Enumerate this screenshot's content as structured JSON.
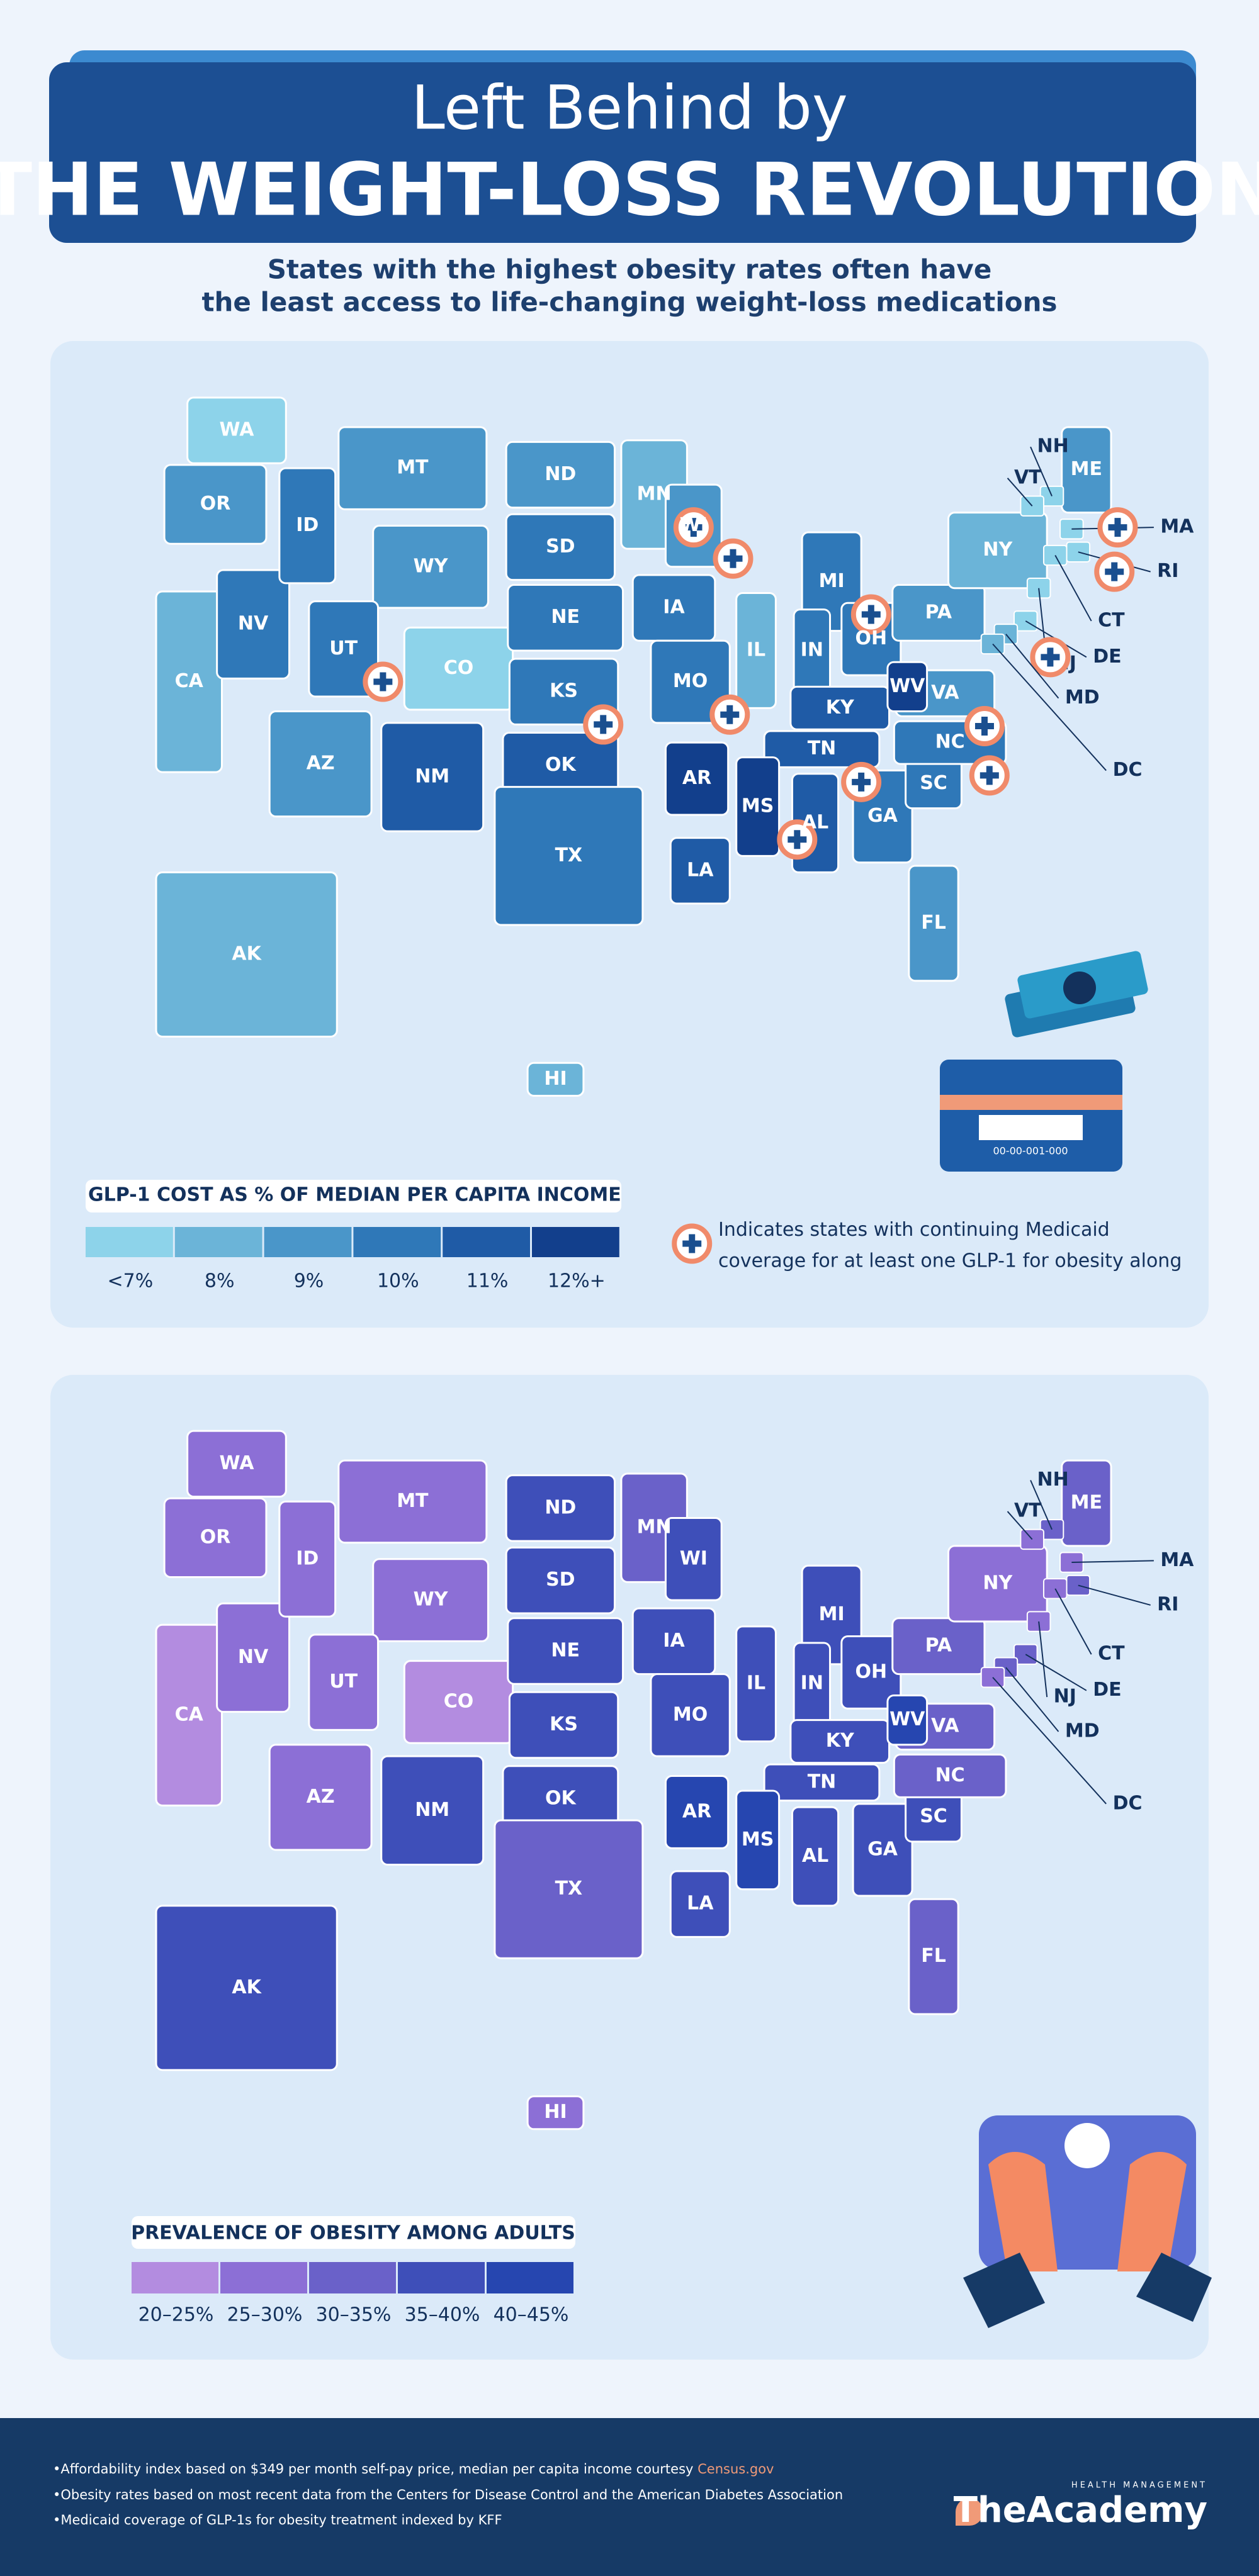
{
  "header": {
    "title_line1": "Left Behind by",
    "title_line2": "THE WEIGHT-LOSS REVOLUTION",
    "subtitle_line1": "States with the highest obesity rates often have",
    "subtitle_line2": "the least access to life-changing weight-loss medications"
  },
  "maps": [
    {
      "legend_title": "GLP-1 COST AS % OF MEDIAN PER CAPITA INCOME",
      "legend_labels": [
        "<7%",
        "8%",
        "9%",
        "10%",
        "11%",
        "12%+"
      ],
      "colors": [
        "#8dd3ea",
        "#6bb4d8",
        "#4a96c9",
        "#2f78b8",
        "#1f5ba6",
        "#123f8c"
      ],
      "note_line1": "Indicates states with continuing Medicaid",
      "note_line2": "coverage for at least one GLP-1 for obesity along",
      "states": [
        {
          "label": "WA",
          "bin": 0
        },
        {
          "label": "OR",
          "bin": 2
        },
        {
          "label": "CA",
          "bin": 1
        },
        {
          "label": "NV",
          "bin": 3
        },
        {
          "label": "ID",
          "bin": 3
        },
        {
          "label": "MT",
          "bin": 2
        },
        {
          "label": "WY",
          "bin": 2
        },
        {
          "label": "UT",
          "bin": 3,
          "medicaid": true
        },
        {
          "label": "CO",
          "bin": 0
        },
        {
          "label": "AZ",
          "bin": 2
        },
        {
          "label": "NM",
          "bin": 4
        },
        {
          "label": "ND",
          "bin": 2
        },
        {
          "label": "SD",
          "bin": 3
        },
        {
          "label": "NE",
          "bin": 3
        },
        {
          "label": "KS",
          "bin": 3,
          "medicaid": true
        },
        {
          "label": "OK",
          "bin": 4
        },
        {
          "label": "TX",
          "bin": 3
        },
        {
          "label": "MN",
          "bin": 1,
          "medicaid": true
        },
        {
          "label": "IA",
          "bin": 3
        },
        {
          "label": "MO",
          "bin": 3,
          "medicaid": true
        },
        {
          "label": "AR",
          "bin": 5
        },
        {
          "label": "LA",
          "bin": 4
        },
        {
          "label": "WI",
          "bin": 2,
          "medicaid": true
        },
        {
          "label": "IL",
          "bin": 1
        },
        {
          "label": "MI",
          "bin": 3,
          "medicaid": true
        },
        {
          "label": "IN",
          "bin": 3
        },
        {
          "label": "OH",
          "bin": 3
        },
        {
          "label": "KY",
          "bin": 4
        },
        {
          "label": "TN",
          "bin": 4,
          "medicaid": true
        },
        {
          "label": "MS",
          "bin": 5,
          "medicaid": true
        },
        {
          "label": "AL",
          "bin": 4
        },
        {
          "label": "GA",
          "bin": 3
        },
        {
          "label": "FL",
          "bin": 2
        },
        {
          "label": "SC",
          "bin": 3
        },
        {
          "label": "NC",
          "bin": 3,
          "medicaid": true
        },
        {
          "label": "VA",
          "bin": 2,
          "medicaid": true
        },
        {
          "label": "WV",
          "bin": 5
        },
        {
          "label": "PA",
          "bin": 2
        },
        {
          "label": "NY",
          "bin": 1
        },
        {
          "label": "ME",
          "bin": 2
        },
        {
          "label": "AK",
          "bin": 1
        },
        {
          "label": "HI",
          "bin": 1
        },
        {
          "label": "NH",
          "bin": 0
        },
        {
          "label": "VT",
          "bin": 0
        },
        {
          "label": "MA",
          "bin": 0,
          "medicaid": true
        },
        {
          "label": "RI",
          "bin": 0,
          "medicaid": true
        },
        {
          "label": "CT",
          "bin": 0
        },
        {
          "label": "NJ",
          "bin": 0
        },
        {
          "label": "DE",
          "bin": 0,
          "medicaid": true
        },
        {
          "label": "MD",
          "bin": 1
        },
        {
          "label": "DC",
          "bin": 1
        }
      ]
    },
    {
      "legend_title": "PREVALENCE OF OBESITY AMONG ADULTS",
      "legend_labels": [
        "20–25%",
        "25–30%",
        "30–35%",
        "35–40%",
        "40–45%"
      ],
      "colors": [
        "#b38ce0",
        "#8c6fd6",
        "#6a61c9",
        "#3e4fb9",
        "#2646b0"
      ],
      "states": [
        {
          "label": "WA",
          "bin": 1
        },
        {
          "label": "OR",
          "bin": 1
        },
        {
          "label": "CA",
          "bin": 0
        },
        {
          "label": "NV",
          "bin": 1
        },
        {
          "label": "ID",
          "bin": 1
        },
        {
          "label": "MT",
          "bin": 1
        },
        {
          "label": "WY",
          "bin": 1
        },
        {
          "label": "UT",
          "bin": 1
        },
        {
          "label": "CO",
          "bin": 0
        },
        {
          "label": "AZ",
          "bin": 1
        },
        {
          "label": "NM",
          "bin": 3
        },
        {
          "label": "ND",
          "bin": 3
        },
        {
          "label": "SD",
          "bin": 3
        },
        {
          "label": "NE",
          "bin": 3
        },
        {
          "label": "KS",
          "bin": 3
        },
        {
          "label": "OK",
          "bin": 3
        },
        {
          "label": "TX",
          "bin": 2
        },
        {
          "label": "MN",
          "bin": 2
        },
        {
          "label": "IA",
          "bin": 3
        },
        {
          "label": "MO",
          "bin": 3
        },
        {
          "label": "AR",
          "bin": 4
        },
        {
          "label": "LA",
          "bin": 3
        },
        {
          "label": "WI",
          "bin": 3
        },
        {
          "label": "IL",
          "bin": 3
        },
        {
          "label": "MI",
          "bin": 3
        },
        {
          "label": "IN",
          "bin": 3
        },
        {
          "label": "OH",
          "bin": 3
        },
        {
          "label": "KY",
          "bin": 3
        },
        {
          "label": "TN",
          "bin": 3
        },
        {
          "label": "MS",
          "bin": 4
        },
        {
          "label": "AL",
          "bin": 3
        },
        {
          "label": "GA",
          "bin": 3
        },
        {
          "label": "FL",
          "bin": 2
        },
        {
          "label": "SC",
          "bin": 3
        },
        {
          "label": "NC",
          "bin": 2
        },
        {
          "label": "VA",
          "bin": 2
        },
        {
          "label": "WV",
          "bin": 4
        },
        {
          "label": "PA",
          "bin": 2
        },
        {
          "label": "NY",
          "bin": 1
        },
        {
          "label": "ME",
          "bin": 2
        },
        {
          "label": "AK",
          "bin": 3
        },
        {
          "label": "HI",
          "bin": 1
        },
        {
          "label": "NH",
          "bin": 2
        },
        {
          "label": "VT",
          "bin": 1
        },
        {
          "label": "MA",
          "bin": 1
        },
        {
          "label": "RI",
          "bin": 2
        },
        {
          "label": "CT",
          "bin": 1
        },
        {
          "label": "NJ",
          "bin": 1
        },
        {
          "label": "DE",
          "bin": 2
        },
        {
          "label": "MD",
          "bin": 2
        },
        {
          "label": "DC",
          "bin": 1
        }
      ]
    }
  ],
  "illustration": {
    "card_number": "00-00-001-000"
  },
  "footer": {
    "note1": "•Affordability index based on $349 per month self-pay price, median per capita income courtesy ",
    "note1_link": "Census.gov",
    "note2": "•Obesity rates based on most recent data from the Centers for Disease Control and the American Diabetes Association",
    "note3": "•Medicaid coverage of GLP-1s for obesity treatment indexed by KFF",
    "brand_small": "HEALTH MANAGEMENT",
    "brand": "TheAcademy"
  }
}
